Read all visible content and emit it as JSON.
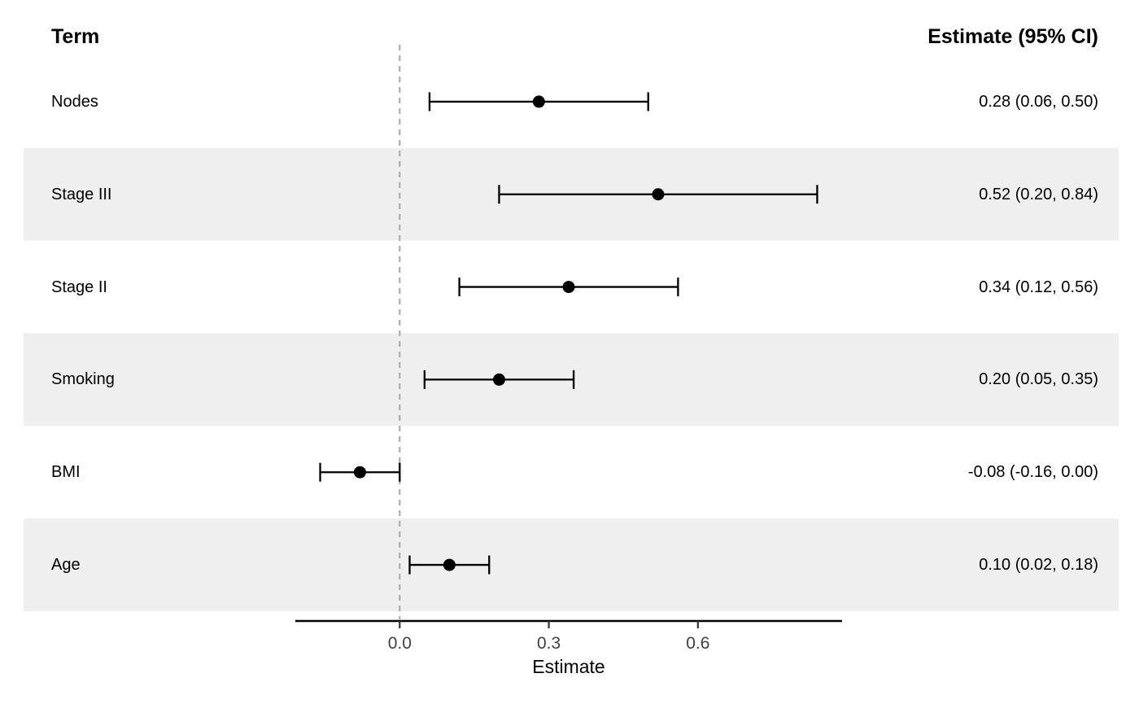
{
  "figure": {
    "left_header": "Term",
    "right_header": "Estimate (95% CI)"
  },
  "chart_data": {
    "type": "scatter",
    "variant": "forest-plot",
    "title": "",
    "xlabel": "Estimate",
    "ylabel": "",
    "grid": false,
    "legend": "none",
    "xlim": [
      -0.21,
      0.89
    ],
    "x_ticks": [
      0.0,
      0.3,
      0.6
    ],
    "x_tick_labels": [
      "0.0",
      "0.3",
      "0.6"
    ],
    "reference_line_x": 0.0,
    "rows": [
      {
        "term": "Nodes",
        "estimate": 0.28,
        "ci_low": 0.06,
        "ci_high": 0.5,
        "label": "0.28 (0.06, 0.50)"
      },
      {
        "term": "Stage III",
        "estimate": 0.52,
        "ci_low": 0.2,
        "ci_high": 0.84,
        "label": "0.52 (0.20, 0.84)"
      },
      {
        "term": "Stage II",
        "estimate": 0.34,
        "ci_low": 0.12,
        "ci_high": 0.56,
        "label": "0.34 (0.12, 0.56)"
      },
      {
        "term": "Smoking",
        "estimate": 0.2,
        "ci_low": 0.05,
        "ci_high": 0.35,
        "label": "0.20 (0.05, 0.35)"
      },
      {
        "term": "BMI",
        "estimate": -0.08,
        "ci_low": -0.16,
        "ci_high": 0.0,
        "label": "-0.08 (-0.16, 0.00)"
      },
      {
        "term": "Age",
        "estimate": 0.1,
        "ci_low": 0.02,
        "ci_high": 0.18,
        "label": "0.10 (0.02, 0.18)"
      }
    ],
    "colors": {
      "band": "#EFEFEF",
      "reference_line": "#A6A6A6",
      "axis_line": "#000000",
      "tick_mark": "#333333",
      "tick_label": "#404040",
      "marker": "#000000",
      "ci_line": "#000000",
      "text": "#000000",
      "background": "#FFFFFF"
    }
  }
}
